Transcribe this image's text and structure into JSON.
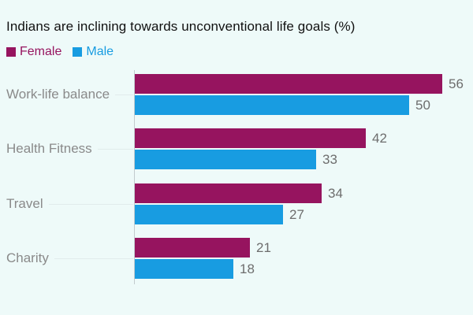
{
  "page": {
    "background_color": "#eefaf9"
  },
  "title": "Indians are inclining towards unconventional life goals (%)",
  "legend": [
    {
      "label": "Female",
      "color": "#96145f"
    },
    {
      "label": "Male",
      "color": "#189ce1"
    }
  ],
  "chart_data": {
    "type": "bar",
    "orientation": "horizontal",
    "title": "Indians are inclining towards unconventional life goals (%)",
    "unit": "%",
    "categories": [
      "Work-life balance",
      "Health Fitness",
      "Travel",
      "Charity"
    ],
    "series": [
      {
        "name": "Female",
        "color": "#96145f",
        "values": [
          56,
          42,
          34,
          21
        ]
      },
      {
        "name": "Male",
        "color": "#189ce1",
        "values": [
          50,
          33,
          27,
          18
        ]
      }
    ],
    "value_labels_shown": true,
    "xlim": [
      0,
      60
    ],
    "grid": false,
    "legend_position": "top-left",
    "value_label_color": "#6d6d6d",
    "category_label_color": "#8a8a8a",
    "axis_line_color": "#c2cbce"
  }
}
